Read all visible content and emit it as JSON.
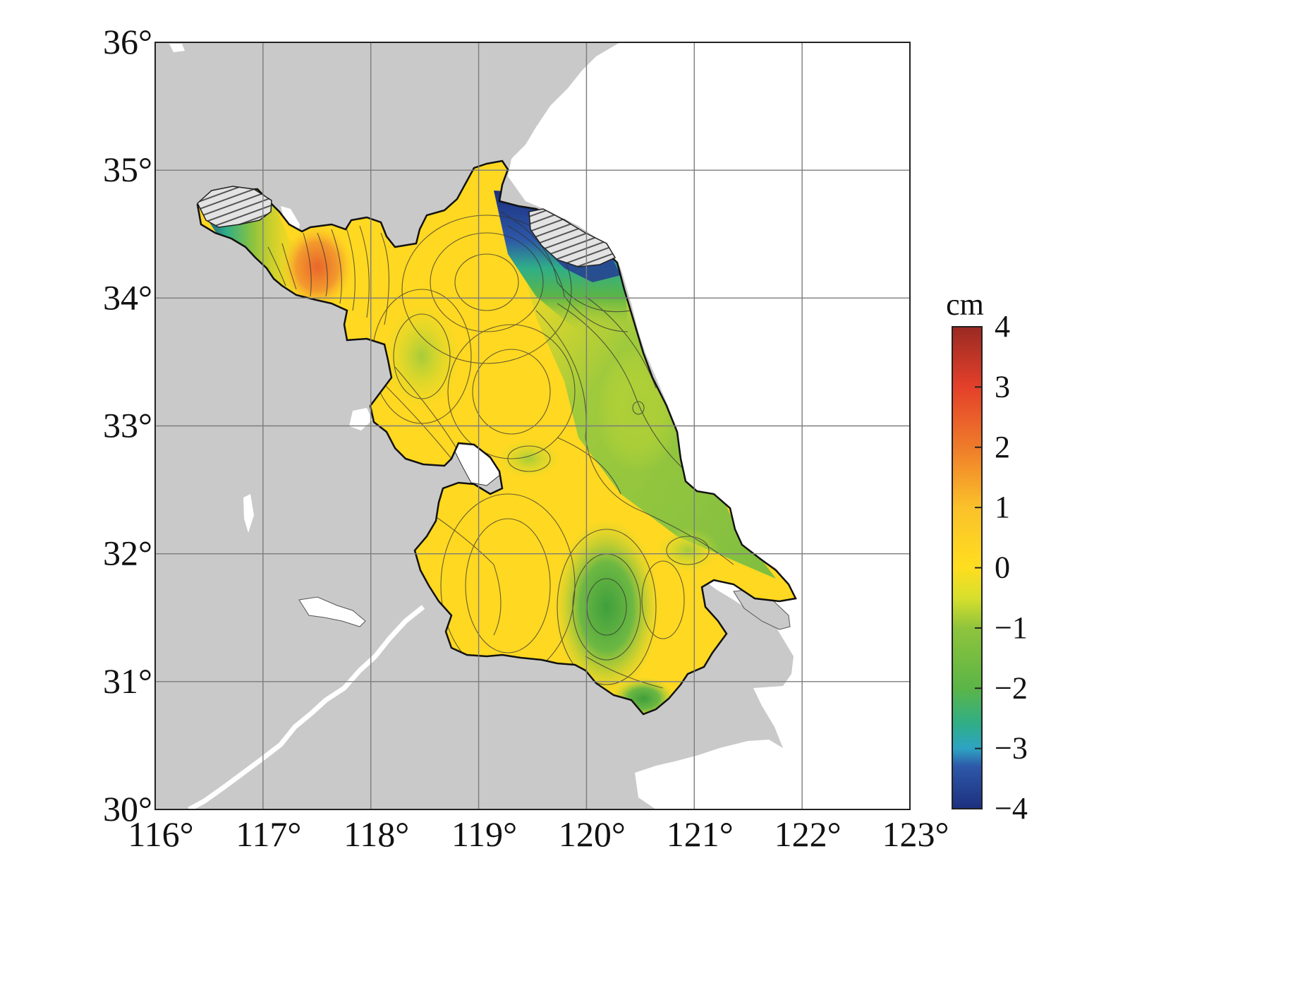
{
  "map": {
    "x_axis": {
      "min": 116,
      "max": 123,
      "ticks": [
        116,
        117,
        118,
        119,
        120,
        121,
        122,
        123
      ],
      "labels": [
        "116°",
        "117°",
        "118°",
        "119°",
        "120°",
        "121°",
        "122°",
        "123°"
      ]
    },
    "y_axis": {
      "min": 30,
      "max": 36,
      "ticks": [
        30,
        31,
        32,
        33,
        34,
        35,
        36
      ],
      "labels": [
        "30°",
        "31°",
        "32°",
        "33°",
        "34°",
        "35°",
        "36°"
      ]
    },
    "grid": true,
    "colors": {
      "land": "#c9c9c9",
      "sea": "#ffffff",
      "grid": "#7c7c7c",
      "lakes": "#ffffff"
    }
  },
  "colorbar": {
    "unit": "cm",
    "min": -4,
    "max": 4,
    "ticks": [
      4,
      3,
      2,
      1,
      0,
      -1,
      -2,
      -3,
      -4
    ],
    "labels": [
      "4",
      "3",
      "2",
      "1",
      "0",
      "−1",
      "−2",
      "−3",
      "−4"
    ],
    "colors": [
      {
        "value": -4,
        "color": "#1d2f7f"
      },
      {
        "value": -3.3,
        "color": "#2d58a8"
      },
      {
        "value": -3,
        "color": "#2ea3c4"
      },
      {
        "value": -2.6,
        "color": "#2fae88"
      },
      {
        "value": -2,
        "color": "#5bb547"
      },
      {
        "value": -1,
        "color": "#8fc43c"
      },
      {
        "value": -0.5,
        "color": "#d7df2c"
      },
      {
        "value": 0,
        "color": "#ffde1f"
      },
      {
        "value": 1,
        "color": "#fbc12a"
      },
      {
        "value": 2,
        "color": "#ef7b2a"
      },
      {
        "value": 3,
        "color": "#e4402a"
      },
      {
        "value": 4,
        "color": "#9a2a23"
      }
    ]
  }
}
